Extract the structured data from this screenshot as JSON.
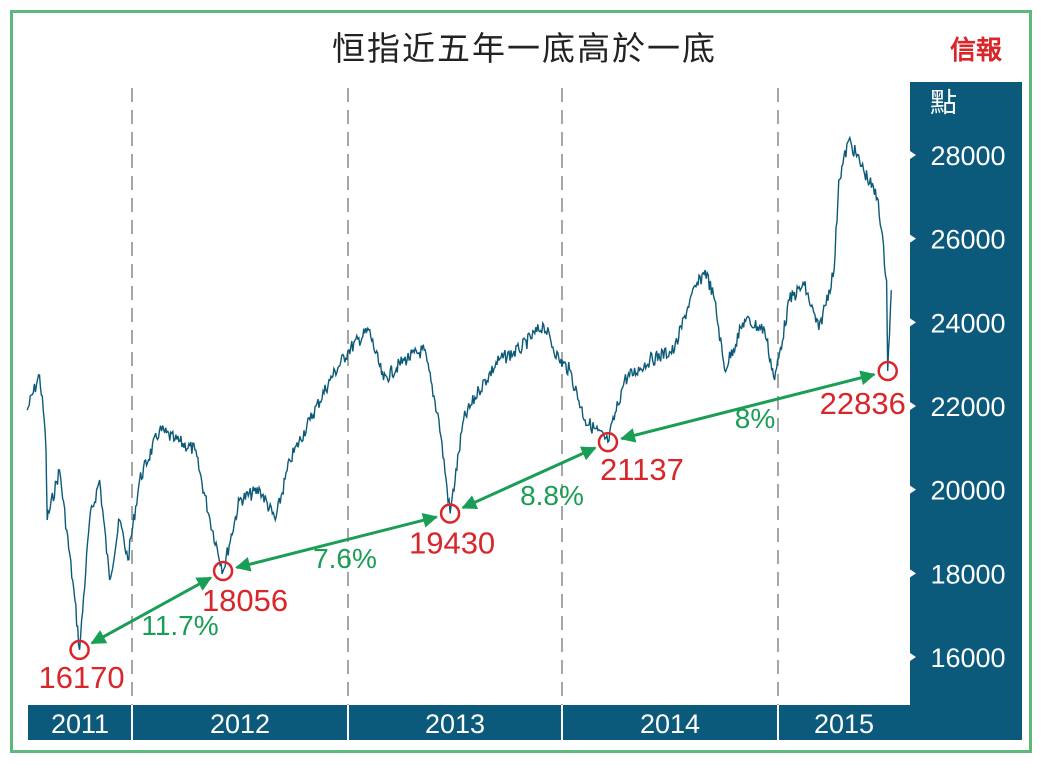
{
  "title": "恒指近五年一底高於一底",
  "logo": "信報",
  "colors": {
    "price": "#0d5a78",
    "panel": "#0b5a7c",
    "low": "#d8262a",
    "arrow": "#1a9e55",
    "frame": "#5db87c",
    "gridline": "#888888"
  },
  "chart_data": {
    "type": "line",
    "title": "恒指近五年一底高於一底",
    "ylabel": "點",
    "ylim": [
      15000,
      29000
    ],
    "yticks": [
      16000,
      18000,
      20000,
      22000,
      24000,
      26000,
      28000
    ],
    "years": [
      "2011",
      "2012",
      "2013",
      "2014",
      "2015"
    ],
    "year_gridlines": "dashed",
    "series": [
      {
        "points": [
          [
            "2011-07-07",
            21900
          ],
          [
            "2011-07-28",
            22740
          ],
          [
            "2011-08-05",
            21670
          ],
          [
            "2011-08-08",
            20950
          ],
          [
            "2011-08-10",
            19275
          ],
          [
            "2011-08-31",
            20470
          ],
          [
            "2011-09-26",
            17360
          ],
          [
            "2011-10-04",
            16170
          ],
          [
            "2011-10-21",
            19275
          ],
          [
            "2011-11-07",
            20230
          ],
          [
            "2011-11-24",
            17840
          ],
          [
            "2011-12-11",
            19275
          ],
          [
            "2011-12-25",
            18320
          ],
          [
            "2012-01-14",
            20230
          ],
          [
            "2012-02-17",
            21430
          ],
          [
            "2012-03-14",
            21190
          ],
          [
            "2012-04-17",
            20950
          ],
          [
            "2012-05-13",
            19275
          ],
          [
            "2012-06-04",
            18056
          ],
          [
            "2012-07-02",
            19750
          ],
          [
            "2012-08-06",
            20000
          ],
          [
            "2012-09-01",
            19275
          ],
          [
            "2012-09-26",
            20700
          ],
          [
            "2012-10-30",
            21670
          ],
          [
            "2012-12-03",
            22620
          ],
          [
            "2013-01-04",
            23340
          ],
          [
            "2013-02-07",
            23820
          ],
          [
            "2013-03-04",
            22620
          ],
          [
            "2013-04-08",
            23100
          ],
          [
            "2013-05-12",
            23340
          ],
          [
            "2013-06-06",
            21670
          ],
          [
            "2013-06-25",
            19430
          ],
          [
            "2013-07-18",
            21670
          ],
          [
            "2013-08-13",
            22380
          ],
          [
            "2013-09-16",
            23100
          ],
          [
            "2013-10-20",
            23340
          ],
          [
            "2013-12-01",
            23940
          ],
          [
            "2013-12-27",
            23100
          ],
          [
            "2014-01-14",
            22860
          ],
          [
            "2014-02-09",
            21670
          ],
          [
            "2014-03-20",
            21137
          ],
          [
            "2014-04-17",
            22620
          ],
          [
            "2014-05-30",
            23100
          ],
          [
            "2014-07-11",
            23340
          ],
          [
            "2014-08-06",
            24530
          ],
          [
            "2014-09-01",
            25250
          ],
          [
            "2014-09-17",
            24530
          ],
          [
            "2014-10-04",
            22860
          ],
          [
            "2014-11-07",
            24060
          ],
          [
            "2014-12-11",
            23820
          ],
          [
            "2014-12-28",
            22620
          ],
          [
            "2015-01-22",
            24530
          ],
          [
            "2015-02-16",
            24900
          ],
          [
            "2015-03-13",
            23820
          ],
          [
            "2015-04-08",
            25250
          ],
          [
            "2015-04-16",
            27400
          ],
          [
            "2015-05-03",
            28360
          ],
          [
            "2015-05-28",
            27640
          ],
          [
            "2015-06-22",
            26920
          ],
          [
            "2015-07-06",
            25000
          ],
          [
            "2015-07-08",
            22836
          ],
          [
            "2015-07-14",
            24770
          ]
        ]
      }
    ],
    "lows": [
      {
        "date": "2011-10-04",
        "value": 16170,
        "label": "16170"
      },
      {
        "date": "2012-06-04",
        "value": 18056,
        "label": "18056"
      },
      {
        "date": "2013-06-25",
        "value": 19430,
        "label": "19430"
      },
      {
        "date": "2014-03-20",
        "value": 21137,
        "label": "21137"
      },
      {
        "date": "2015-07-08",
        "value": 22836,
        "label": "22836"
      }
    ],
    "annotations": [
      "11.7%",
      "7.6%",
      "8.8%",
      "8%"
    ]
  }
}
